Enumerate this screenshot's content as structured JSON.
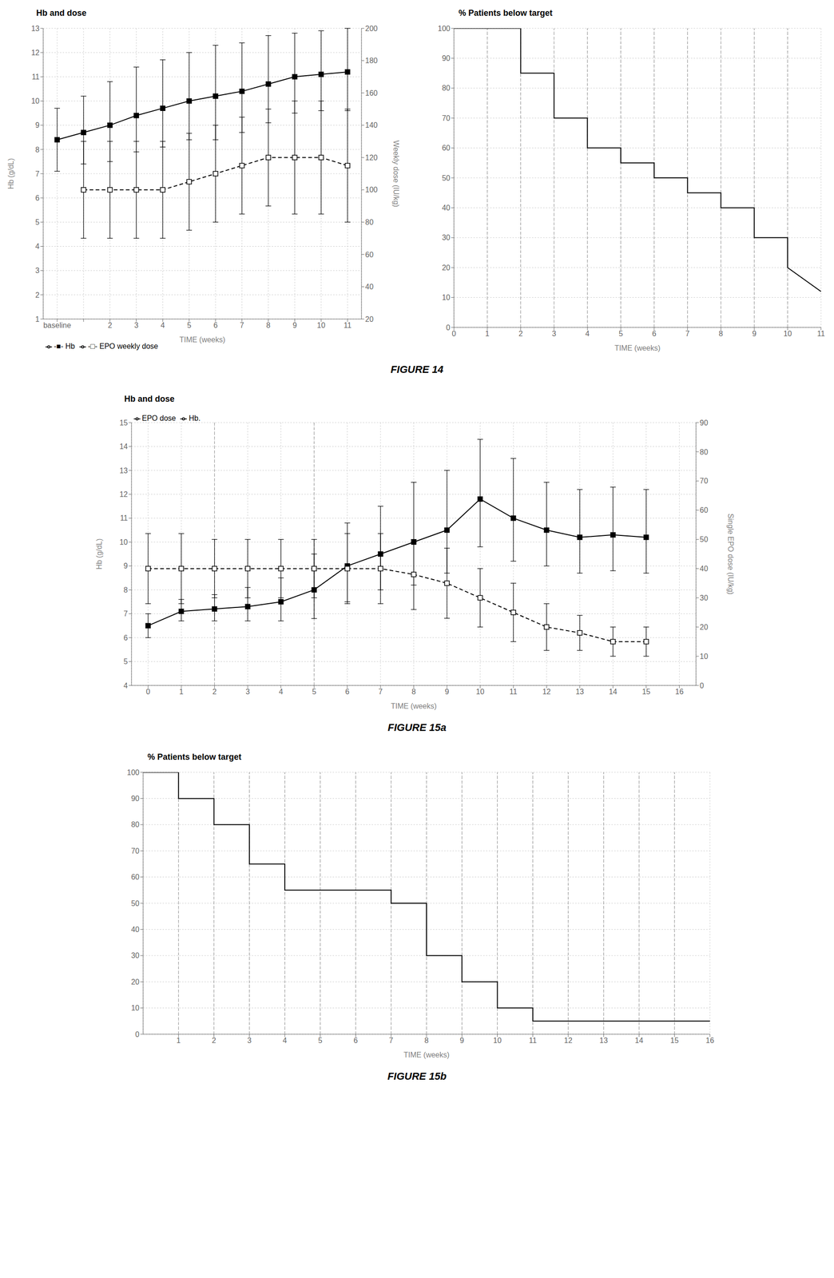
{
  "chart_data": [
    {
      "type": "line",
      "title": "Hb and dose",
      "xlabel": "TIME (weeks)",
      "ylabel": "Hb (g/dL)",
      "y2label": "Weekly dose (IU/kg)",
      "categories": [
        "baseline",
        null,
        "2",
        "3",
        "4",
        "5",
        "6",
        "7",
        "8",
        "9",
        "10",
        "11"
      ],
      "ylim": [
        1,
        13
      ],
      "yticks": [
        1,
        2,
        3,
        4,
        5,
        6,
        7,
        8,
        9,
        10,
        11,
        12,
        13
      ],
      "y2lim": [
        20,
        200
      ],
      "y2ticks": [
        20,
        40,
        60,
        80,
        100,
        120,
        140,
        160,
        180,
        200
      ],
      "grid": true,
      "legend": "lower left",
      "series": [
        {
          "name": "-■- Hb",
          "color": "#000000",
          "marker": "square",
          "line_style": "solid",
          "values": [
            8.4,
            8.7,
            9.0,
            9.4,
            9.7,
            10.0,
            10.2,
            10.4,
            10.7,
            11.0,
            11.1,
            11.2
          ],
          "error_low": [
            1.3,
            1.3,
            1.5,
            1.5,
            1.6,
            1.6,
            1.8,
            1.7,
            1.6,
            1.5,
            1.5,
            1.6
          ],
          "error_high": [
            1.3,
            1.5,
            1.8,
            2.0,
            2.0,
            2.0,
            2.1,
            2.0,
            2.0,
            1.8,
            1.8,
            1.8
          ]
        },
        {
          "name": "-□- EPO weekly dose",
          "color": "#000000",
          "marker": "open_square",
          "line_style": "dashed",
          "axis": "y2",
          "values": [
            null,
            100,
            100,
            100,
            100,
            105,
            110,
            115,
            120,
            120,
            120,
            115
          ],
          "error_low": [
            null,
            30,
            30,
            30,
            30,
            30,
            30,
            30,
            30,
            35,
            35,
            35
          ],
          "error_high": [
            null,
            30,
            30,
            30,
            30,
            30,
            30,
            30,
            30,
            35,
            35,
            35
          ]
        }
      ],
      "annotations": [
        "FIGURE 14"
      ]
    },
    {
      "type": "line",
      "title": "% Patients below target",
      "xlabel": "TIME (weeks)",
      "x": [
        0,
        2,
        2,
        3,
        3,
        4,
        4,
        5,
        5,
        6,
        6,
        7,
        7,
        8,
        8,
        9,
        9,
        10,
        10,
        11
      ],
      "xlim": [
        0,
        11
      ],
      "xticks": [
        0,
        1,
        2,
        3,
        4,
        5,
        6,
        7,
        8,
        9,
        10,
        11
      ],
      "ylim": [
        0,
        100
      ],
      "yticks": [
        0,
        10,
        20,
        30,
        40,
        50,
        60,
        70,
        80,
        90,
        100
      ],
      "grid": true,
      "reference_lines_x": [
        1,
        2,
        3,
        4,
        5,
        6,
        7,
        8,
        9,
        10
      ],
      "series": [
        {
          "color": "#000000",
          "line_style": "solid",
          "values": [
            100,
            100,
            85,
            85,
            70,
            70,
            60,
            60,
            55,
            55,
            50,
            50,
            45,
            45,
            40,
            40,
            30,
            30,
            20,
            12
          ]
        }
      ]
    },
    {
      "type": "line",
      "title": "Hb and dose",
      "xlabel": "TIME (weeks)",
      "ylabel": "Hb (g/dL)",
      "y2label": "Single EPO dose (IU/kg)",
      "x": [
        0,
        1,
        2,
        3,
        4,
        5,
        6,
        7,
        8,
        9,
        10,
        11,
        12,
        13,
        14,
        15
      ],
      "xlim": [
        -0.5,
        16.5
      ],
      "xticks": [
        0,
        1,
        2,
        3,
        4,
        5,
        6,
        7,
        8,
        9,
        10,
        11,
        12,
        13,
        14,
        15,
        16
      ],
      "ylim": [
        4,
        15
      ],
      "yticks": [
        4,
        5,
        6,
        7,
        8,
        9,
        10,
        11,
        12,
        13,
        14,
        15
      ],
      "y2lim": [
        0,
        90
      ],
      "y2ticks": [
        0,
        10,
        20,
        30,
        40,
        50,
        60,
        70,
        80,
        90
      ],
      "grid": true,
      "legend": "upper left",
      "reference_lines_x": [
        2,
        5
      ],
      "series": [
        {
          "name": "Hb.",
          "color": "#000000",
          "marker": "square",
          "line_style": "solid",
          "values": [
            6.5,
            7.1,
            7.2,
            7.3,
            7.5,
            8.0,
            9.0,
            9.5,
            10.0,
            10.5,
            11.8,
            11.0,
            10.5,
            10.2,
            10.3,
            10.2
          ],
          "error_low": [
            0.5,
            0.4,
            0.5,
            0.6,
            0.8,
            1.2,
            1.5,
            1.5,
            1.8,
            1.8,
            2.0,
            1.8,
            1.5,
            1.5,
            1.5,
            1.5
          ],
          "error_high": [
            0.5,
            0.5,
            0.6,
            0.8,
            1.0,
            1.5,
            1.8,
            2.0,
            2.5,
            2.5,
            2.5,
            2.5,
            2.0,
            2.0,
            2.0,
            2.0
          ]
        },
        {
          "name": "EPO dose",
          "color": "#000000",
          "marker": "open_square",
          "line_style": "dashed",
          "axis": "y2",
          "values": [
            40,
            40,
            40,
            40,
            40,
            40,
            40,
            40,
            38,
            35,
            30,
            25,
            20,
            18,
            15,
            15
          ],
          "error_low": [
            12,
            12,
            10,
            10,
            10,
            10,
            12,
            12,
            12,
            12,
            10,
            10,
            8,
            6,
            5,
            5
          ],
          "error_high": [
            12,
            12,
            10,
            10,
            10,
            10,
            12,
            12,
            12,
            12,
            10,
            10,
            8,
            6,
            5,
            5
          ]
        }
      ],
      "annotations": [
        "FIGURE 15a"
      ]
    },
    {
      "type": "line",
      "title": "% Patients below target",
      "xlabel": "TIME (weeks)",
      "x": [
        0,
        1,
        1,
        2,
        2,
        3,
        3,
        4,
        4,
        7,
        7,
        8,
        8,
        9,
        9,
        10,
        10,
        11,
        11,
        16
      ],
      "xlim": [
        0,
        16
      ],
      "xticks": [
        1,
        2,
        3,
        4,
        5,
        6,
        7,
        8,
        9,
        10,
        11,
        12,
        13,
        14,
        15,
        16
      ],
      "ylim": [
        0,
        100
      ],
      "yticks": [
        0,
        10,
        20,
        30,
        40,
        50,
        60,
        70,
        80,
        90,
        100
      ],
      "grid": true,
      "reference_lines_x": [
        1,
        2,
        3,
        4,
        5,
        6,
        7,
        8,
        9,
        10,
        11,
        12,
        13,
        14,
        15
      ],
      "series": [
        {
          "color": "#000000",
          "line_style": "solid",
          "values": [
            100,
            100,
            90,
            90,
            80,
            80,
            65,
            65,
            55,
            55,
            50,
            50,
            30,
            30,
            20,
            20,
            10,
            10,
            5,
            5
          ]
        }
      ],
      "annotations": [
        "FIGURE 15b"
      ]
    }
  ]
}
